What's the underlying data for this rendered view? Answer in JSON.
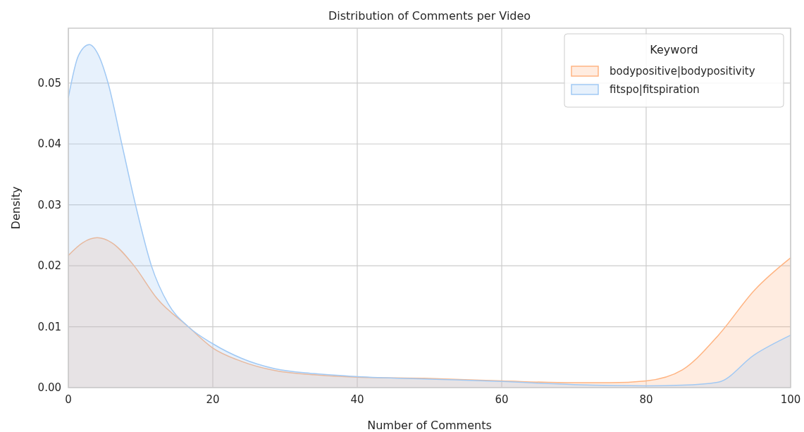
{
  "chart_data": {
    "type": "area",
    "title": "Distribution of Comments per Video",
    "xlabel": "Number of Comments",
    "ylabel": "Density",
    "legend_title": "Keyword",
    "legend": "top right",
    "grid": true,
    "xlim": [
      0,
      100
    ],
    "ylim": [
      0,
      0.059
    ],
    "xticks": [
      0,
      20,
      40,
      60,
      80,
      100
    ],
    "yticks": [
      {
        "value": 0,
        "label": "0.00"
      },
      {
        "value": 0.01,
        "label": "0.01"
      },
      {
        "value": 0.02,
        "label": "0.02"
      },
      {
        "value": 0.03,
        "label": "0.03"
      },
      {
        "value": 0.04,
        "label": "0.04"
      },
      {
        "value": 0.05,
        "label": "0.05"
      }
    ],
    "series": [
      {
        "name": "bodypositive|bodypositivity",
        "color": "#ffb482",
        "x": [
          0,
          2,
          4,
          6,
          9.1,
          12.3,
          16.6,
          20,
          24,
          28.6,
          34,
          40,
          50,
          60,
          70,
          75,
          80,
          85,
          90,
          95,
          100
        ],
        "values": [
          0.0217,
          0.0238,
          0.0246,
          0.0238,
          0.02,
          0.0146,
          0.01,
          0.0065,
          0.0043,
          0.0028,
          0.0021,
          0.0017,
          0.0015,
          0.0011,
          0.0008,
          0.0008,
          0.0011,
          0.0029,
          0.0086,
          0.016,
          0.0213
        ]
      },
      {
        "name": "fitspo|fitspiration",
        "color": "#a1c9f4",
        "x": [
          0,
          1.4,
          2.9,
          4.2,
          5.5,
          7.4,
          9.3,
          11.5,
          13.8,
          16.6,
          20,
          24,
          28.6,
          34,
          40,
          50,
          60,
          70,
          80,
          85,
          90,
          95,
          100
        ],
        "values": [
          0.0476,
          0.0545,
          0.0563,
          0.0545,
          0.05,
          0.04,
          0.03,
          0.02,
          0.0138,
          0.01,
          0.0072,
          0.0048,
          0.0031,
          0.0023,
          0.0018,
          0.0014,
          0.001,
          0.0005,
          0.0003,
          0.0004,
          0.0009,
          0.0054,
          0.0086
        ]
      }
    ]
  }
}
